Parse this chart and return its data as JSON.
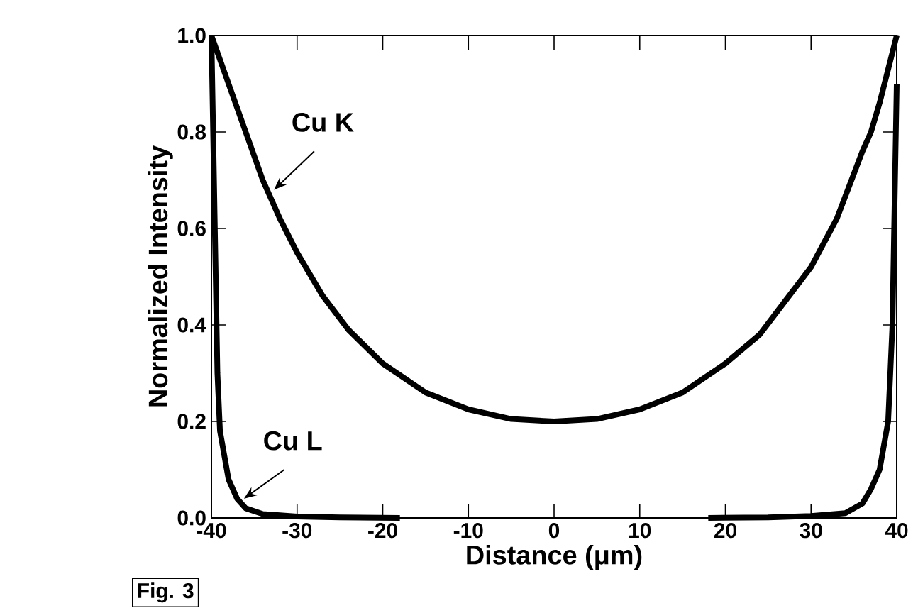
{
  "chart_data": {
    "type": "line",
    "xlabel": "Distance (μm)",
    "ylabel": "Normalized Intensity",
    "xlim": [
      -40,
      40
    ],
    "xticks": [
      -40,
      -30,
      -20,
      -10,
      0,
      10,
      20,
      30,
      40
    ],
    "ylim": [
      0,
      1
    ],
    "yticks": [
      {
        "value": 0,
        "label": "0.0"
      },
      {
        "value": 0.2,
        "label": "0.2"
      },
      {
        "value": 0.4,
        "label": "0.4"
      },
      {
        "value": 0.6,
        "label": "0.6"
      },
      {
        "value": 0.8,
        "label": "0.8"
      },
      {
        "value": 1,
        "label": "1.0"
      }
    ],
    "grid": false,
    "marker": "none",
    "line_style": "solid",
    "series": [
      {
        "color": "#000000",
        "x": [
          -40,
          -38,
          -36,
          -34,
          -32,
          -30,
          -27,
          -24,
          -20,
          -15,
          -10,
          -5,
          0,
          5,
          10,
          15,
          20,
          24,
          27,
          30,
          33,
          36,
          37,
          38,
          40
        ],
        "values": [
          1.0,
          0.9,
          0.8,
          0.7,
          0.62,
          0.55,
          0.46,
          0.39,
          0.32,
          0.26,
          0.225,
          0.205,
          0.2,
          0.205,
          0.225,
          0.26,
          0.32,
          0.38,
          0.45,
          0.52,
          0.62,
          0.76,
          0.8,
          0.86,
          1.0
        ]
      },
      {
        "color": "#000000",
        "x": [
          -40,
          -39.6,
          -39.3,
          -39,
          -38,
          -37,
          -36,
          -34,
          -30,
          -25,
          -18,
          0,
          18,
          25,
          30,
          34,
          36,
          37,
          38,
          39,
          39.5,
          39.8,
          40
        ],
        "values": [
          1.0,
          0.6,
          0.3,
          0.18,
          0.08,
          0.04,
          0.02,
          0.008,
          0.003,
          0.001,
          0.0,
          null,
          0.0,
          0.001,
          0.004,
          0.01,
          0.03,
          0.06,
          0.1,
          0.2,
          0.4,
          0.7,
          0.9
        ]
      }
    ],
    "annotations": [
      {
        "text": "Cu  K",
        "x": -33,
        "y": 0.67
      },
      {
        "text": "Cu  L",
        "x": -36.5,
        "y": 0.03
      },
      "Fig. 3"
    ]
  }
}
